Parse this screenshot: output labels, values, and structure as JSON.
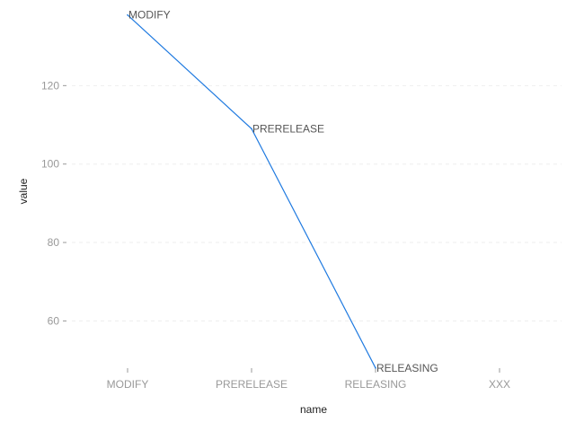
{
  "chart_data": {
    "type": "line",
    "categories": [
      "MODIFY",
      "PRERELEASE",
      "RELEASING",
      "XXX"
    ],
    "series": [
      {
        "values": [
          138,
          109,
          48,
          null
        ],
        "labels": [
          "MODIFY",
          "PRERELEASE",
          "RELEASING",
          null
        ]
      }
    ],
    "xlabel": "name",
    "ylabel": "value",
    "ylim": [
      47.5,
      140
    ],
    "yticks": [
      60,
      80,
      100,
      120
    ],
    "grid": true,
    "line_color": "#1f7ae0"
  }
}
